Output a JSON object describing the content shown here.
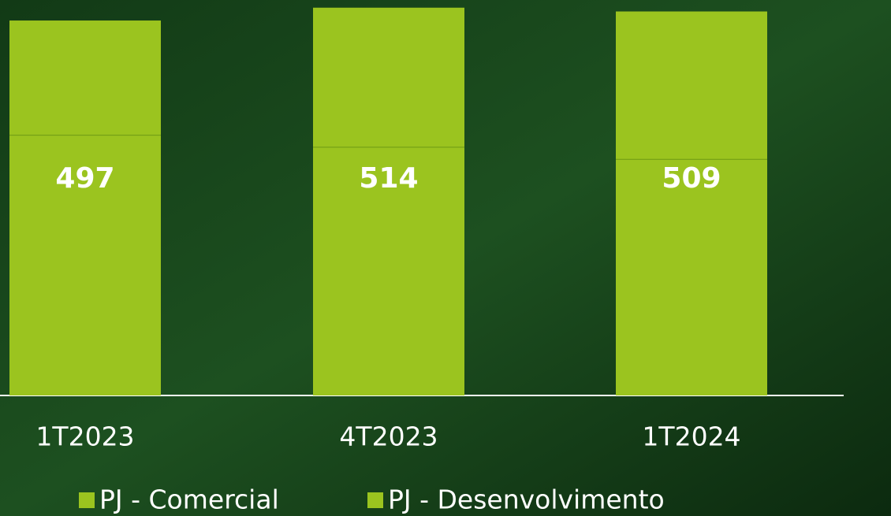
{
  "chart_data": {
    "type": "stacked_bar",
    "categories": [
      "1T2023",
      "4T2023",
      "1T2024"
    ],
    "series": [
      {
        "name": "PJ - Comercial",
        "color": "#9bc41f",
        "values": [
          345,
          329,
          313
        ]
      },
      {
        "name": "PJ - Desenvolvimento",
        "color": "#9bc41f",
        "values": [
          152,
          185,
          196
        ]
      }
    ],
    "total_labels": [
      "497",
      "514",
      "509"
    ],
    "ylim": [
      0,
      520
    ]
  }
}
